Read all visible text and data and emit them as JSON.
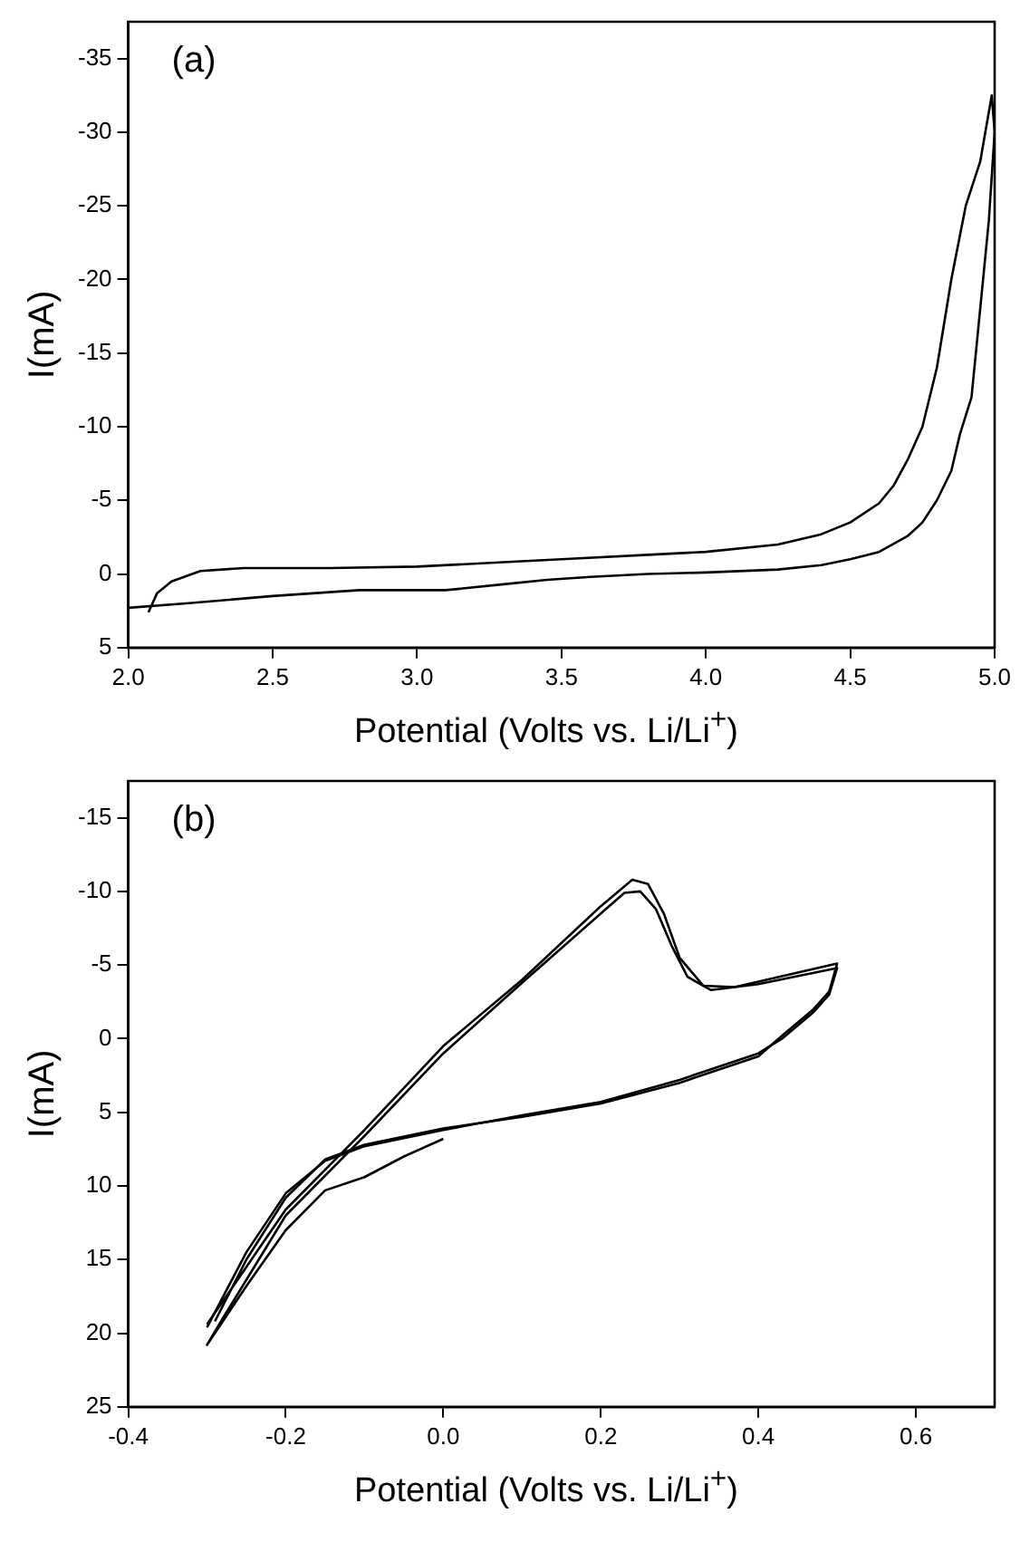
{
  "chart_data": [
    {
      "type": "line",
      "xlabel": "Potential (Volts vs. Li/Li$^{+}$)",
      "ylabel": "I(mA)",
      "annotations": [
        "(a)"
      ],
      "grid": false,
      "legend": false,
      "marker": "none",
      "line_style": "solid",
      "xlim": [
        2.0,
        5.0
      ],
      "xticks": [
        {
          "value": 2.0,
          "label": "2.0"
        },
        {
          "value": 2.5,
          "label": "2.5"
        },
        {
          "value": 3.0,
          "label": "3.0"
        },
        {
          "value": 3.5,
          "label": "3.5"
        },
        {
          "value": 4.0,
          "label": "4.0"
        },
        {
          "value": 4.5,
          "label": "4.5"
        },
        {
          "value": 5.0,
          "label": "5.0"
        }
      ],
      "ylim": [
        5,
        -37.5
      ],
      "yticks": [
        -35,
        -30,
        -25,
        -20,
        -15,
        -10,
        -5,
        0,
        5
      ],
      "series": [
        {
          "color": "#000000",
          "x": [
            2.07,
            2.1,
            2.15,
            2.25,
            2.4,
            2.7,
            3.0,
            3.3,
            3.5,
            3.8,
            4.0,
            4.25,
            4.4,
            4.5,
            4.6,
            4.65,
            4.7,
            4.75,
            4.8,
            4.85,
            4.9,
            4.95,
            4.99,
            5.0,
            4.98,
            4.95,
            4.92,
            4.88,
            4.85,
            4.8,
            4.75,
            4.7,
            4.6,
            4.5,
            4.4,
            4.25,
            4.0,
            3.8,
            3.6,
            3.45,
            3.3,
            3.1,
            3.0,
            2.8,
            2.5,
            2.2,
            2.0
          ],
          "values": [
            2.6,
            1.3,
            0.5,
            -0.2,
            -0.4,
            -0.4,
            -0.5,
            -0.8,
            -1.0,
            -1.3,
            -1.5,
            -2.0,
            -2.7,
            -3.5,
            -4.8,
            -6.0,
            -7.8,
            -10.0,
            -14,
            -20,
            -25,
            -28,
            -32.5,
            -30,
            -24,
            -18,
            -12,
            -9.5,
            -7,
            -5,
            -3.5,
            -2.6,
            -1.5,
            -1.0,
            -0.6,
            -0.3,
            -0.1,
            0.0,
            0.2,
            0.4,
            0.7,
            1.1,
            1.1,
            1.1,
            1.5,
            2.0,
            2.3
          ]
        }
      ]
    },
    {
      "type": "line",
      "xlabel": "Potential (Volts vs. Li/Li$^{+}$)",
      "ylabel": "I(mA)",
      "annotations": [
        "(b)"
      ],
      "grid": false,
      "legend": false,
      "marker": "none",
      "line_style": "solid",
      "xlim": [
        -0.4,
        0.7
      ],
      "xticks": [
        -0.4,
        -0.2,
        {
          "value": 0.0,
          "label": "0.0"
        },
        0.2,
        0.4,
        0.6
      ],
      "ylim": [
        25,
        -17.5
      ],
      "yticks": [
        -15,
        -10,
        -5,
        0,
        5,
        10,
        15,
        20,
        25
      ],
      "series": [
        {
          "color": "#000000",
          "x": [
            0,
            -0.05,
            -0.1,
            -0.15,
            -0.2,
            -0.25,
            -0.3,
            -0.28,
            -0.2,
            -0.1,
            0,
            0.1,
            0.2,
            0.23,
            0.25,
            0.27,
            0.29,
            0.31,
            0.34,
            0.4,
            0.5,
            0.49,
            0.47,
            0.43,
            0.4,
            0.3,
            0.2,
            0.1,
            0,
            -0.1,
            -0.15,
            -0.2,
            -0.25,
            -0.3
          ],
          "values": [
            6.8,
            8,
            9.4,
            10.3,
            13,
            16.8,
            20.8,
            19,
            12,
            6.6,
            1,
            -3.8,
            -8.5,
            -9.9,
            -10,
            -8.8,
            -6.3,
            -4.2,
            -3.3,
            -3.7,
            -4.8,
            -3,
            -1.8,
            0,
            1,
            2.8,
            4.3,
            5.2,
            6.2,
            7.3,
            8.3,
            10.5,
            14.5,
            19.6
          ]
        },
        {
          "color": "#000000",
          "x": [
            -0.3,
            -0.2,
            -0.1,
            0,
            0.1,
            0.2,
            0.24,
            0.26,
            0.28,
            0.3,
            0.33,
            0.37,
            0.5,
            0.49,
            0.47,
            0.43,
            0.4,
            0.3,
            0.2,
            0.1,
            0,
            -0.1,
            -0.15,
            -0.2,
            -0.25,
            -0.29
          ],
          "values": [
            19.4,
            11.6,
            6.2,
            0.5,
            -4,
            -9,
            -10.8,
            -10.5,
            -8.5,
            -5.5,
            -3.6,
            -3.5,
            -5.1,
            -3.2,
            -2,
            -0.2,
            1.2,
            3,
            4.4,
            5.3,
            6.1,
            7.2,
            8.2,
            10.8,
            15,
            19.2
          ]
        }
      ]
    }
  ]
}
